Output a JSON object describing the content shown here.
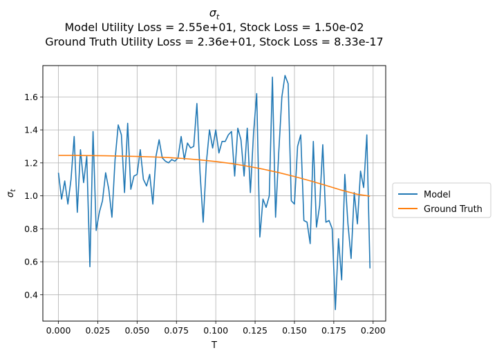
{
  "chart_data": {
    "type": "line",
    "title": {
      "symbol": "σ",
      "symbol_sub": "t",
      "line2": "Model Utility Loss = 2.55e+01, Stock Loss = 1.50e-02",
      "line3": "Ground Truth Utility Loss = 2.36e+01, Stock Loss = 8.33e-17"
    },
    "xlabel": "T",
    "ylabel": {
      "symbol": "σ",
      "sub": "t"
    },
    "xlim": [
      -0.0099,
      0.208
    ],
    "ylim": [
      0.24,
      1.79
    ],
    "grid": true,
    "legend_position": "right, outside",
    "x_ticks": [
      {
        "value": 0.0,
        "label": "0.000"
      },
      {
        "value": 0.025,
        "label": "0.025"
      },
      {
        "value": 0.05,
        "label": "0.050"
      },
      {
        "value": 0.075,
        "label": "0.075"
      },
      {
        "value": 0.1,
        "label": "0.100"
      },
      {
        "value": 0.125,
        "label": "0.125"
      },
      {
        "value": 0.15,
        "label": "0.150"
      },
      {
        "value": 0.175,
        "label": "0.175"
      },
      {
        "value": 0.2,
        "label": "0.200"
      }
    ],
    "y_ticks": [
      {
        "value": 0.4,
        "label": "0.4"
      },
      {
        "value": 0.6,
        "label": "0.6"
      },
      {
        "value": 0.8,
        "label": "0.8"
      },
      {
        "value": 1.0,
        "label": "1.0"
      },
      {
        "value": 1.2,
        "label": "1.2"
      },
      {
        "value": 1.4,
        "label": "1.4"
      },
      {
        "value": 1.6,
        "label": "1.6"
      }
    ],
    "series": [
      {
        "name": "Model",
        "color": "#1f77b4",
        "x": [
          0.0,
          0.002,
          0.004,
          0.006,
          0.008,
          0.01,
          0.012,
          0.014,
          0.016,
          0.018,
          0.02,
          0.022,
          0.024,
          0.026,
          0.028,
          0.03,
          0.032,
          0.034,
          0.036,
          0.038,
          0.04,
          0.042,
          0.044,
          0.046,
          0.048,
          0.05,
          0.052,
          0.054,
          0.056,
          0.058,
          0.06,
          0.062,
          0.064,
          0.066,
          0.068,
          0.07,
          0.072,
          0.074,
          0.076,
          0.078,
          0.08,
          0.082,
          0.084,
          0.086,
          0.088,
          0.09,
          0.092,
          0.094,
          0.096,
          0.098,
          0.1,
          0.102,
          0.104,
          0.106,
          0.108,
          0.11,
          0.112,
          0.114,
          0.116,
          0.118,
          0.12,
          0.122,
          0.124,
          0.126,
          0.128,
          0.13,
          0.132,
          0.134,
          0.136,
          0.138,
          0.14,
          0.142,
          0.144,
          0.146,
          0.148,
          0.15,
          0.152,
          0.154,
          0.156,
          0.158,
          0.16,
          0.162,
          0.164,
          0.166,
          0.168,
          0.17,
          0.172,
          0.174,
          0.176,
          0.178,
          0.18,
          0.182,
          0.184,
          0.186,
          0.188,
          0.19,
          0.192,
          0.194,
          0.196,
          0.198
        ],
        "y": [
          1.14,
          0.98,
          1.09,
          0.95,
          1.1,
          1.36,
          0.9,
          1.28,
          1.08,
          1.24,
          0.57,
          1.39,
          0.79,
          0.9,
          0.97,
          1.14,
          1.04,
          0.87,
          1.22,
          1.43,
          1.37,
          1.02,
          1.44,
          1.04,
          1.12,
          1.13,
          1.28,
          1.1,
          1.06,
          1.13,
          0.95,
          1.24,
          1.34,
          1.23,
          1.21,
          1.2,
          1.22,
          1.21,
          1.23,
          1.36,
          1.22,
          1.32,
          1.29,
          1.3,
          1.56,
          1.14,
          0.84,
          1.2,
          1.4,
          1.29,
          1.4,
          1.26,
          1.33,
          1.33,
          1.37,
          1.39,
          1.12,
          1.41,
          1.34,
          1.12,
          1.41,
          1.02,
          1.38,
          1.62,
          0.75,
          0.98,
          0.93,
          1.0,
          1.72,
          0.87,
          1.26,
          1.6,
          1.73,
          1.68,
          0.97,
          0.95,
          1.3,
          1.37,
          0.85,
          0.84,
          0.71,
          1.33,
          0.81,
          0.94,
          1.31,
          0.84,
          0.85,
          0.8,
          0.31,
          0.74,
          0.49,
          1.13,
          0.83,
          0.62,
          1.02,
          0.83,
          1.15,
          1.05,
          1.37,
          0.56
        ]
      },
      {
        "name": "Ground Truth",
        "color": "#ff7f0e",
        "x": [
          0.0,
          0.01,
          0.02,
          0.03,
          0.04,
          0.05,
          0.06,
          0.07,
          0.08,
          0.09,
          0.1,
          0.11,
          0.12,
          0.13,
          0.14,
          0.15,
          0.16,
          0.17,
          0.18,
          0.19,
          0.198
        ],
        "y": [
          1.245,
          1.245,
          1.244,
          1.243,
          1.241,
          1.239,
          1.236,
          1.232,
          1.226,
          1.218,
          1.208,
          1.196,
          1.18,
          1.162,
          1.141,
          1.117,
          1.091,
          1.063,
          1.034,
          1.009,
          0.998
        ]
      }
    ]
  }
}
